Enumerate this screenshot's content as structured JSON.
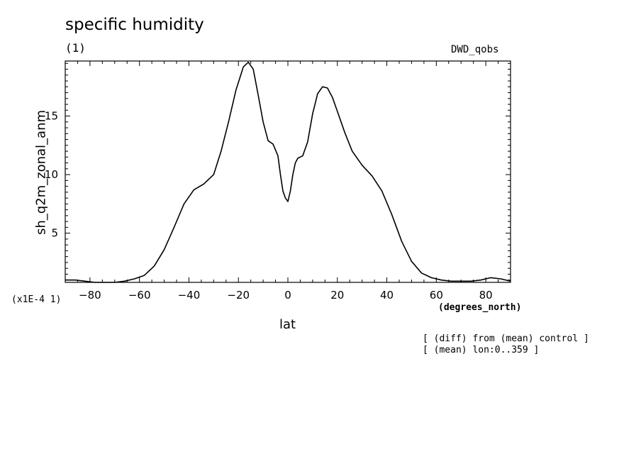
{
  "chart_data": {
    "type": "line",
    "title": "specific humidity",
    "subtitle": "(1)",
    "source_label": "DWD_qobs",
    "xlabel": "lat",
    "xunits": "(degrees_north)",
    "ylabel": "sh_q2m_zonal_anm",
    "yscale_label": "(x1E-4 1)",
    "notes": [
      "[ (diff) from (mean) control ]",
      "[ (mean) lon:0..359 ]"
    ],
    "xlim": [
      -90,
      90
    ],
    "ylim": [
      0.8,
      19.7
    ],
    "x_ticks": [
      -80,
      -60,
      -40,
      -20,
      0,
      20,
      40,
      60,
      80
    ],
    "y_ticks": [
      5,
      10,
      15
    ],
    "series": [
      {
        "x": [
          -90,
          -86,
          -82,
          -78,
          -74,
          -70,
          -66,
          -62,
          -58,
          -54,
          -50,
          -46,
          -42,
          -38,
          -34,
          -30,
          -27,
          -24,
          -21,
          -18,
          -16,
          -14,
          -12,
          -10,
          -8,
          -6,
          -4,
          -3,
          -2,
          -1,
          0,
          1,
          2,
          3,
          4,
          6,
          8,
          10,
          12,
          14,
          16,
          18,
          20,
          23,
          26,
          30,
          34,
          38,
          42,
          46,
          50,
          54,
          58,
          62,
          66,
          70,
          74,
          78,
          82,
          86,
          90
        ],
        "values": [
          1.0,
          1.0,
          0.9,
          0.8,
          0.8,
          0.8,
          0.9,
          1.1,
          1.4,
          2.2,
          3.6,
          5.5,
          7.5,
          8.7,
          9.2,
          10.0,
          12.0,
          14.5,
          17.2,
          19.2,
          19.6,
          19.0,
          16.8,
          14.5,
          12.9,
          12.6,
          11.6,
          10.0,
          8.6,
          8.0,
          7.7,
          8.6,
          10.0,
          11.0,
          11.4,
          11.6,
          12.8,
          15.2,
          16.9,
          17.5,
          17.4,
          16.6,
          15.4,
          13.6,
          12.0,
          10.8,
          9.9,
          8.6,
          6.6,
          4.3,
          2.6,
          1.6,
          1.2,
          1.0,
          0.9,
          0.9,
          0.9,
          1.0,
          1.2,
          1.1,
          0.9
        ]
      }
    ]
  }
}
